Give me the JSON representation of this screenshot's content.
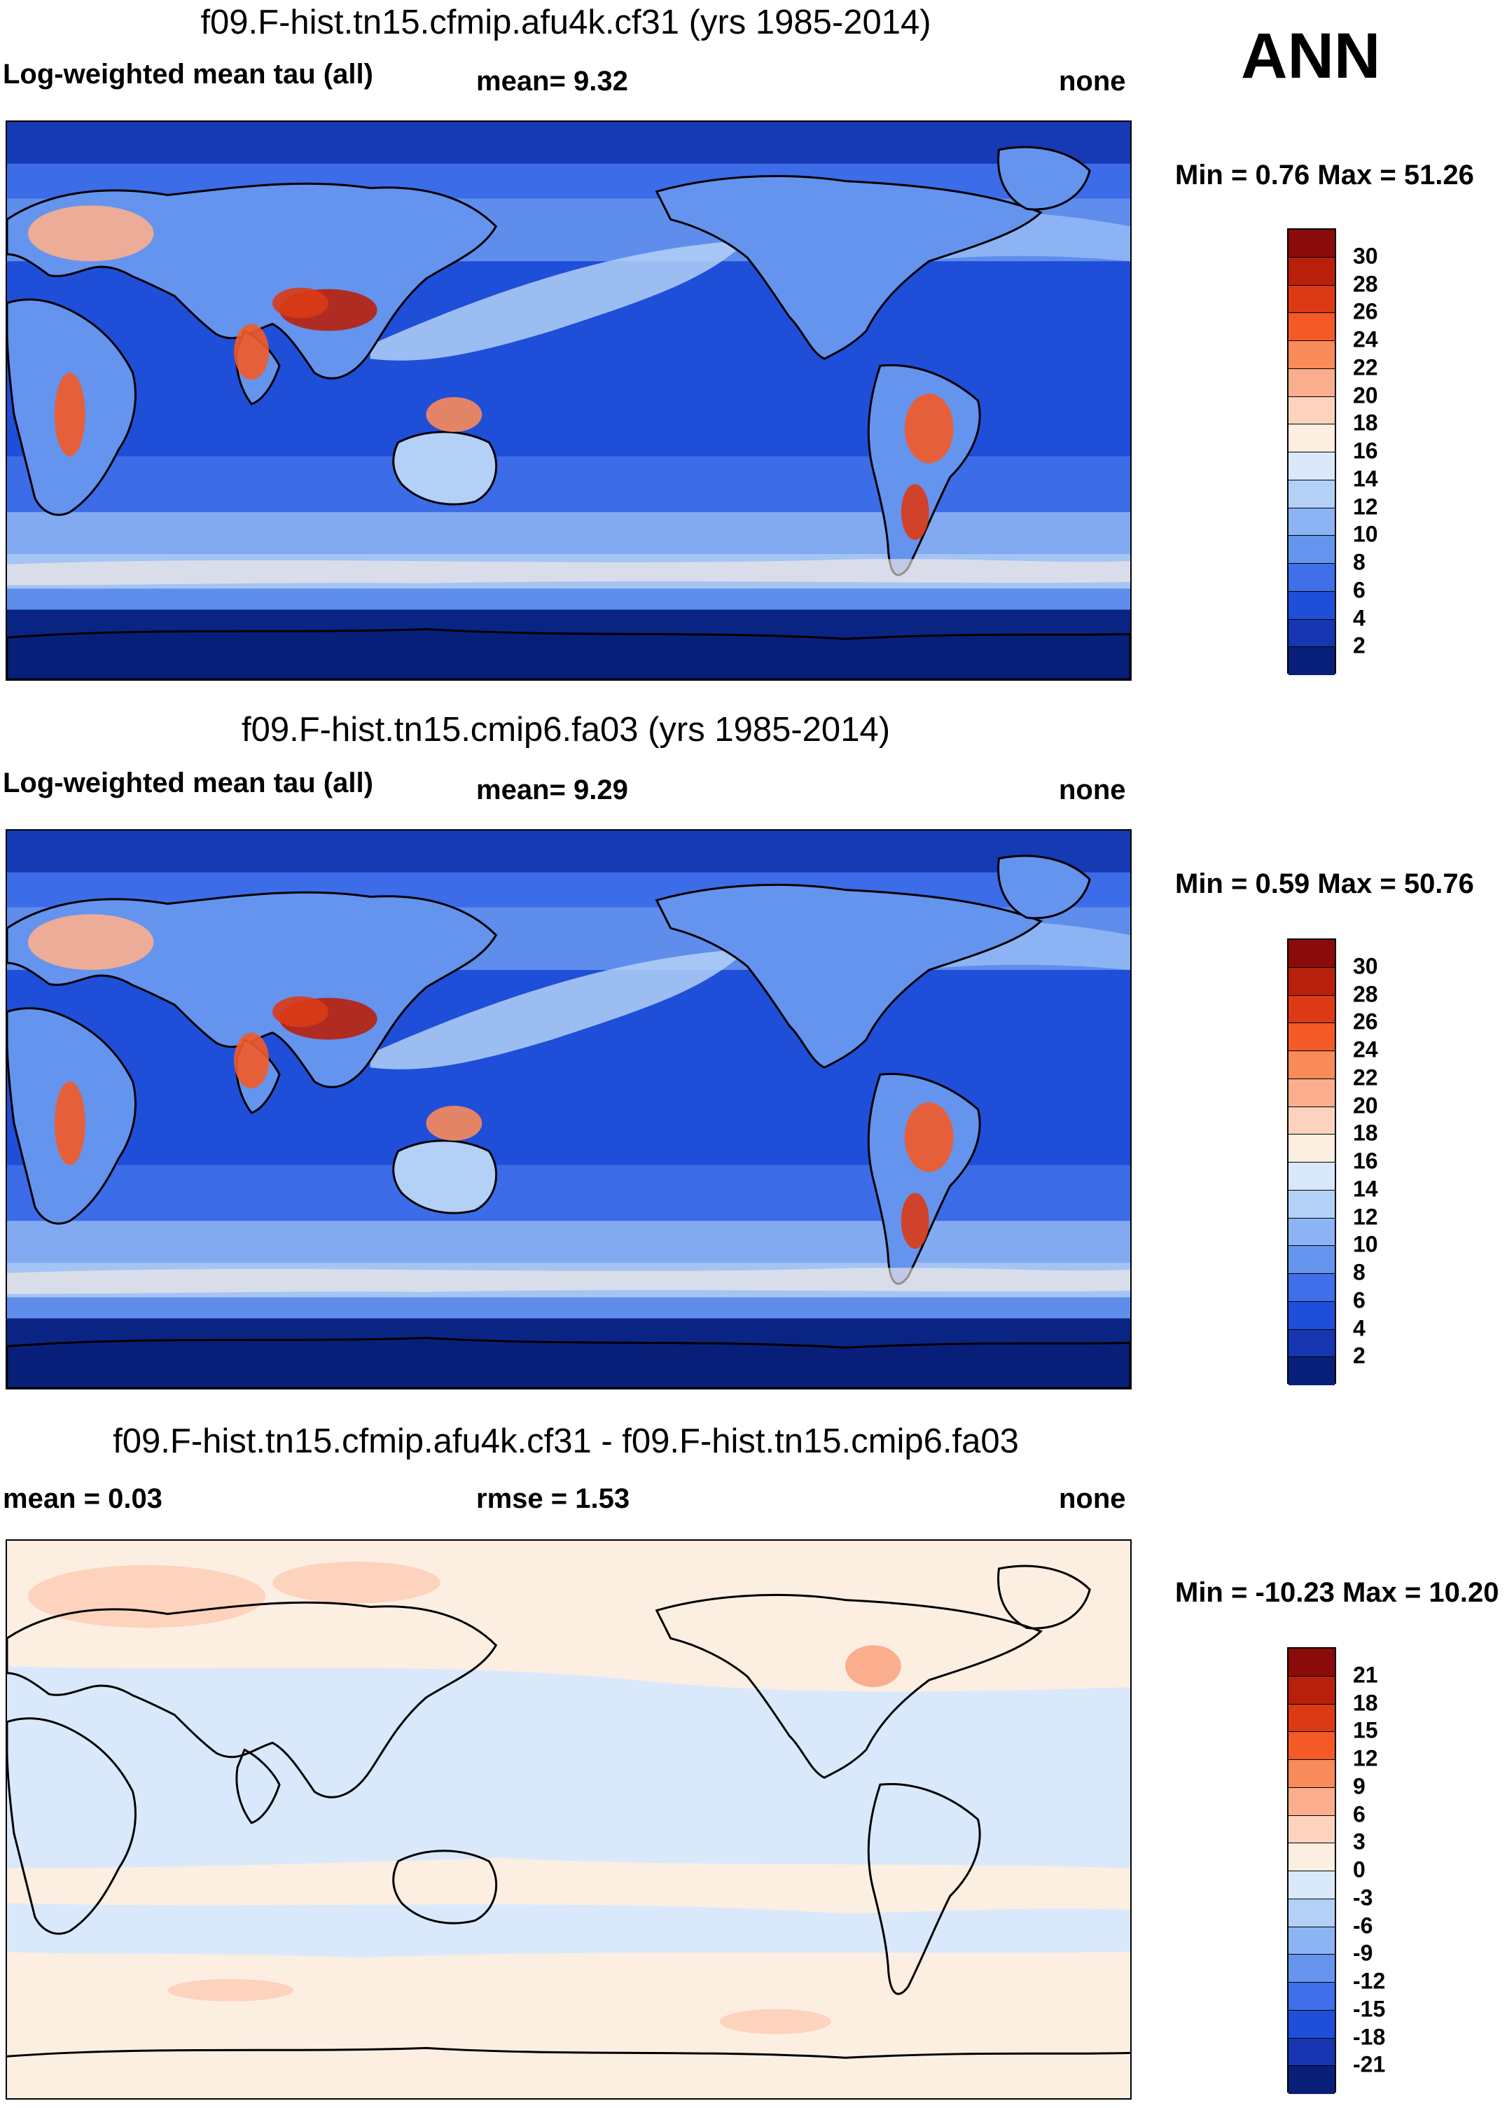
{
  "season_label": "ANN",
  "panels": [
    {
      "id": "test",
      "title": "f09.F-hist.tn15.cfmip.afu4k.cf31 (yrs 1985-2014)",
      "left_label": "Log-weighted mean tau (all)",
      "center_label": "mean=   9.32",
      "right_label": "none",
      "minmax": "Min =   0.76 Max =  51.26",
      "style": "abs",
      "colorbar": {
        "ticks": [
          "30",
          "28",
          "26",
          "24",
          "22",
          "20",
          "18",
          "16",
          "14",
          "12",
          "10",
          "8",
          "6",
          "4",
          "2"
        ],
        "colors": [
          "#8b0b0b",
          "#b8200c",
          "#dc3a14",
          "#f35a26",
          "#f98a5a",
          "#fbae8d",
          "#fdd3bd",
          "#fdeee2",
          "#d9e9fb",
          "#b3d0f7",
          "#8cb4f4",
          "#6594ee",
          "#3f6fe9",
          "#1f4fd8",
          "#1536b0",
          "#081f7a"
        ]
      }
    },
    {
      "id": "control",
      "title": "f09.F-hist.tn15.cmip6.fa03 (yrs 1985-2014)",
      "left_label": "Log-weighted mean tau (all)",
      "center_label": "mean=   9.29",
      "right_label": "none",
      "minmax": "Min =   0.59 Max =  50.76",
      "style": "abs",
      "colorbar": {
        "ticks": [
          "30",
          "28",
          "26",
          "24",
          "22",
          "20",
          "18",
          "16",
          "14",
          "12",
          "10",
          "8",
          "6",
          "4",
          "2"
        ],
        "colors": [
          "#8b0b0b",
          "#b8200c",
          "#dc3a14",
          "#f35a26",
          "#f98a5a",
          "#fbae8d",
          "#fdd3bd",
          "#fdeee2",
          "#d9e9fb",
          "#b3d0f7",
          "#8cb4f4",
          "#6594ee",
          "#3f6fe9",
          "#1f4fd8",
          "#1536b0",
          "#081f7a"
        ]
      }
    },
    {
      "id": "difference",
      "title": "f09.F-hist.tn15.cfmip.afu4k.cf31 - f09.F-hist.tn15.cmip6.fa03",
      "left_label": "mean =   0.03",
      "center_label": "rmse =   1.53",
      "right_label": "none",
      "minmax": "Min = -10.23 Max =  10.20",
      "style": "diff",
      "colorbar": {
        "ticks": [
          "21",
          "18",
          "15",
          "12",
          "9",
          "6",
          "3",
          "0",
          "-3",
          "-6",
          "-9",
          "-12",
          "-15",
          "-18",
          "-21"
        ],
        "colors": [
          "#8b0b0b",
          "#b8200c",
          "#dc3a14",
          "#f35a26",
          "#f98a5a",
          "#fbae8d",
          "#fdd3bd",
          "#fdeee2",
          "#d9e9fb",
          "#b3d0f7",
          "#8cb4f4",
          "#6594ee",
          "#3f6fe9",
          "#1f4fd8",
          "#1536b0",
          "#081f7a"
        ]
      }
    }
  ]
}
